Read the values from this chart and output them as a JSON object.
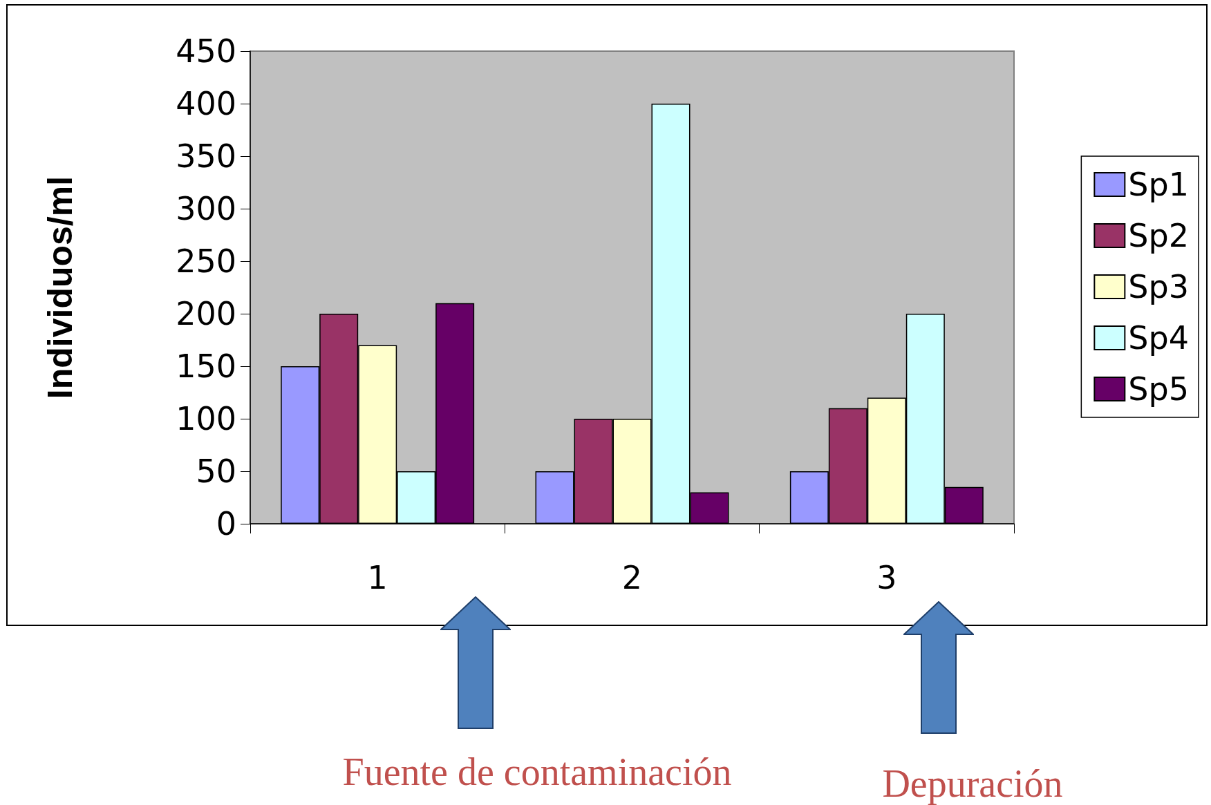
{
  "chart_data": {
    "type": "bar",
    "ylabel": "Individuos/ml",
    "categories": [
      "1",
      "2",
      "3"
    ],
    "series": [
      {
        "name": "Sp1",
        "color": "#9999ff",
        "values": [
          150,
          50,
          50
        ]
      },
      {
        "name": "Sp2",
        "color": "#993366",
        "values": [
          200,
          100,
          110
        ]
      },
      {
        "name": "Sp3",
        "color": "#ffffcc",
        "values": [
          170,
          100,
          120
        ]
      },
      {
        "name": "Sp4",
        "color": "#ccffff",
        "values": [
          50,
          400,
          200
        ]
      },
      {
        "name": "Sp5",
        "color": "#660066",
        "values": [
          210,
          30,
          35
        ]
      }
    ],
    "ylim": [
      0,
      450
    ],
    "yticks": [
      0,
      50,
      100,
      150,
      200,
      250,
      300,
      350,
      400,
      450
    ],
    "grid": false,
    "legend": "right",
    "annotations": [
      "Fuente de contaminación",
      "Depuración"
    ]
  }
}
